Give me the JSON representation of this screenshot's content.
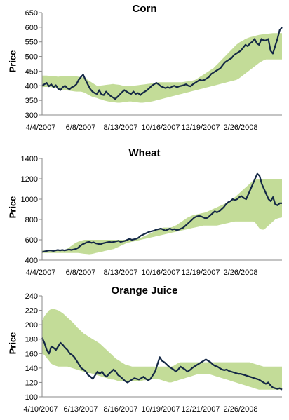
{
  "chart_data": [
    {
      "type": "line",
      "title": "Corn",
      "ylabel": "Price",
      "ylim": [
        300,
        650
      ],
      "yticks": [
        "300",
        "350",
        "400",
        "450",
        "500",
        "550",
        "600",
        "650"
      ],
      "xticks": [
        "4/4/2007",
        "6/8/2007",
        "8/13/2007",
        "10/16/2007",
        "12/19/2007",
        "2/26/2008"
      ],
      "band_color": "#c3dc98",
      "line_color": "#142846",
      "series": [
        {
          "values": [
            400,
            405,
            410,
            398,
            405,
            395,
            402,
            390,
            385,
            395,
            400,
            392,
            388,
            395,
            398,
            405,
            420,
            430,
            438,
            420,
            405,
            390,
            380,
            375,
            372,
            385,
            370,
            368,
            380,
            372,
            365,
            360,
            355,
            362,
            370,
            378,
            385,
            380,
            375,
            372,
            380,
            372,
            375,
            368,
            375,
            380,
            385,
            392,
            400,
            405,
            410,
            405,
            398,
            395,
            392,
            395,
            392,
            398,
            400,
            395,
            398,
            400,
            402,
            405,
            400,
            398,
            405,
            410,
            415,
            420,
            418,
            420,
            425,
            430,
            440,
            445,
            450,
            455,
            460,
            470,
            480,
            485,
            490,
            495,
            505,
            510,
            515,
            520,
            530,
            540,
            535,
            545,
            550,
            560,
            545,
            540,
            560,
            555,
            555,
            560,
            520,
            510,
            535,
            560,
            590,
            600
          ]
        },
        {
          "values": [
            435,
            435,
            435,
            434,
            433,
            432,
            432,
            431,
            432,
            433,
            433,
            434,
            434,
            434,
            433,
            432,
            431,
            430,
            428,
            425,
            420,
            415,
            410,
            405,
            400,
            400,
            401,
            402,
            403,
            404,
            405,
            406,
            405,
            404,
            403,
            401,
            400,
            400,
            400,
            400,
            400,
            401,
            402,
            403,
            404,
            405,
            406,
            407,
            408,
            410,
            411,
            412,
            412,
            412,
            412,
            412,
            412,
            412,
            412,
            412,
            412,
            412,
            413,
            414,
            415,
            416,
            418,
            420,
            425,
            430,
            435,
            440,
            445,
            450,
            455,
            460,
            468,
            476,
            484,
            492,
            500,
            508,
            516,
            524,
            532,
            540,
            546,
            551,
            555,
            560,
            563,
            566,
            568,
            570,
            572,
            574,
            575,
            576,
            577,
            578,
            579,
            580,
            580,
            580,
            580,
            580
          ]
        },
        {
          "values": [
            395,
            396,
            396,
            396,
            395,
            394,
            392,
            390,
            388,
            386,
            385,
            384,
            383,
            382,
            381,
            380,
            380,
            380,
            378,
            375,
            370,
            366,
            362,
            360,
            358,
            355,
            353,
            350,
            348,
            346,
            345,
            344,
            343,
            342,
            342,
            343,
            344,
            345,
            346,
            346,
            345,
            344,
            343,
            342,
            342,
            343,
            344,
            345,
            346,
            348,
            350,
            352,
            354,
            356,
            358,
            360,
            362,
            364,
            366,
            368,
            370,
            372,
            374,
            376,
            378,
            380,
            382,
            384,
            386,
            388,
            390,
            392,
            394,
            396,
            398,
            400,
            402,
            404,
            406,
            408,
            410,
            412,
            414,
            416,
            418,
            420,
            424,
            430,
            436,
            442,
            448,
            454,
            460,
            466,
            472,
            478,
            483,
            487,
            490,
            490,
            490,
            490,
            490,
            490,
            490,
            490
          ]
        }
      ]
    },
    {
      "type": "line",
      "title": "Wheat",
      "ylabel": "Price",
      "ylim": [
        400,
        1400
      ],
      "yticks": [
        "400",
        "600",
        "800",
        "1000",
        "1200",
        "1400"
      ],
      "xticks": [
        "4/4/2007",
        "6/8/2007",
        "8/13/2007",
        "10/16/2007",
        "12/19/2007",
        "2/26/2008"
      ],
      "band_color": "#c3dc98",
      "line_color": "#142846",
      "series": [
        {
          "values": [
            480,
            485,
            490,
            495,
            495,
            490,
            495,
            500,
            495,
            500,
            495,
            500,
            505,
            500,
            505,
            510,
            520,
            540,
            555,
            565,
            575,
            580,
            570,
            575,
            565,
            560,
            555,
            565,
            570,
            575,
            580,
            575,
            580,
            585,
            590,
            580,
            585,
            590,
            600,
            610,
            600,
            605,
            610,
            620,
            640,
            650,
            660,
            670,
            680,
            685,
            690,
            700,
            705,
            710,
            700,
            690,
            700,
            710,
            700,
            705,
            695,
            700,
            710,
            720,
            740,
            760,
            780,
            800,
            820,
            830,
            835,
            830,
            820,
            810,
            820,
            840,
            860,
            880,
            870,
            880,
            900,
            920,
            950,
            970,
            980,
            1000,
            990,
            1000,
            1020,
            1030,
            1010,
            1000,
            1050,
            1100,
            1150,
            1200,
            1250,
            1230,
            1150,
            1100,
            1050,
            1000,
            980,
            1020,
            950,
            940,
            960,
            960
          ]
        },
        {
          "values": [
            495,
            495,
            495,
            495,
            495,
            495,
            495,
            495,
            495,
            495,
            500,
            510,
            525,
            540,
            555,
            570,
            580,
            590,
            595,
            600,
            600,
            600,
            600,
            600,
            600,
            600,
            600,
            600,
            600,
            600,
            600,
            600,
            600,
            600,
            600,
            600,
            600,
            600,
            600,
            600,
            600,
            600,
            605,
            610,
            620,
            630,
            640,
            650,
            660,
            670,
            680,
            690,
            700,
            710,
            720,
            720,
            720,
            720,
            725,
            735,
            745,
            760,
            775,
            790,
            805,
            820,
            830,
            840,
            845,
            850,
            855,
            860,
            865,
            870,
            880,
            890,
            900,
            910,
            920,
            930,
            940,
            950,
            960,
            970,
            985,
            1000,
            1020,
            1040,
            1060,
            1080,
            1100,
            1120,
            1140,
            1160,
            1180,
            1195,
            1200,
            1200,
            1200,
            1200,
            1200,
            1200,
            1200,
            1200,
            1200,
            1200,
            1200,
            1200
          ]
        },
        {
          "values": [
            470,
            470,
            470,
            470,
            470,
            470,
            470,
            470,
            470,
            470,
            470,
            470,
            470,
            470,
            470,
            470,
            470,
            468,
            465,
            462,
            460,
            458,
            460,
            465,
            470,
            475,
            480,
            485,
            490,
            495,
            500,
            505,
            510,
            520,
            530,
            540,
            550,
            560,
            570,
            575,
            580,
            585,
            590,
            595,
            600,
            605,
            610,
            615,
            620,
            625,
            630,
            635,
            640,
            645,
            650,
            655,
            660,
            665,
            670,
            675,
            680,
            685,
            690,
            695,
            700,
            705,
            710,
            715,
            720,
            725,
            730,
            735,
            740,
            740,
            740,
            740,
            740,
            740,
            740,
            745,
            750,
            755,
            760,
            765,
            770,
            775,
            780,
            780,
            780,
            780,
            780,
            780,
            780,
            780,
            780,
            770,
            740,
            710,
            700,
            700,
            720,
            740,
            760,
            780,
            800,
            810,
            815,
            820
          ]
        }
      ]
    },
    {
      "type": "line",
      "title": "Orange Juice",
      "ylabel": "Price",
      "ylim": [
        100,
        240
      ],
      "yticks": [
        "100",
        "120",
        "140",
        "160",
        "180",
        "200",
        "220",
        "240"
      ],
      "xticks": [
        "4/10/2007",
        "6/13/2007",
        "8/16/2007",
        "10/19/2007",
        "12/21/2007",
        "2/26/2008"
      ],
      "band_color": "#c3dc98",
      "line_color": "#142846",
      "series": [
        {
          "values": [
            182,
            175,
            165,
            160,
            170,
            168,
            165,
            170,
            175,
            172,
            168,
            165,
            160,
            158,
            155,
            150,
            145,
            140,
            138,
            135,
            130,
            128,
            125,
            130,
            135,
            132,
            135,
            130,
            128,
            132,
            135,
            138,
            135,
            130,
            128,
            125,
            122,
            120,
            122,
            124,
            126,
            125,
            124,
            126,
            128,
            125,
            123,
            125,
            130,
            135,
            145,
            155,
            150,
            148,
            145,
            142,
            140,
            138,
            135,
            138,
            142,
            140,
            138,
            135,
            137,
            140,
            142,
            144,
            146,
            148,
            150,
            152,
            150,
            148,
            145,
            143,
            142,
            140,
            138,
            137,
            138,
            136,
            135,
            134,
            133,
            132,
            132,
            131,
            130,
            129,
            128,
            127,
            126,
            125,
            124,
            122,
            120,
            118,
            120,
            116,
            113,
            112,
            111,
            112,
            110
          ]
        },
        {
          "values": [
            205,
            212,
            216,
            220,
            222,
            222,
            221,
            220,
            218,
            216,
            213,
            210,
            207,
            204,
            201,
            197,
            194,
            191,
            188,
            186,
            184,
            182,
            180,
            178,
            176,
            174,
            171,
            168,
            165,
            162,
            159,
            156,
            153,
            151,
            149,
            147,
            145,
            144,
            143,
            142,
            142,
            142,
            142,
            142,
            142,
            142,
            142,
            142,
            142,
            142,
            142,
            142,
            142,
            142,
            142,
            142,
            142,
            143,
            145,
            147,
            148,
            148,
            148,
            148,
            148,
            148,
            148,
            148,
            148,
            148,
            148,
            148,
            148,
            148,
            148,
            148,
            148,
            148,
            148,
            148,
            148,
            148,
            148,
            148,
            148,
            148,
            148,
            148,
            148,
            148,
            148,
            147,
            146,
            145,
            144,
            143,
            142,
            142,
            142,
            142,
            142,
            142,
            142,
            142,
            142
          ]
        },
        {
          "values": [
            160,
            158,
            154,
            150,
            146,
            144,
            143,
            142,
            142,
            142,
            142,
            142,
            141,
            140,
            139,
            138,
            137,
            136,
            135,
            134,
            133,
            133,
            132,
            131,
            130,
            129,
            128,
            127,
            126,
            125,
            124,
            124,
            123,
            122,
            122,
            122,
            122,
            122,
            122,
            122,
            122,
            122,
            122,
            122,
            123,
            123,
            124,
            124,
            125,
            125,
            125,
            124,
            123,
            122,
            121,
            120,
            120,
            121,
            122,
            123,
            124,
            125,
            126,
            127,
            128,
            129,
            130,
            131,
            132,
            132,
            132,
            132,
            132,
            131,
            130,
            129,
            128,
            127,
            126,
            125,
            124,
            123,
            122,
            121,
            120,
            119,
            118,
            117,
            116,
            115,
            114,
            113,
            112,
            111,
            110,
            110,
            110,
            110,
            110,
            110,
            110,
            110,
            110,
            110,
            110
          ]
        }
      ]
    }
  ]
}
